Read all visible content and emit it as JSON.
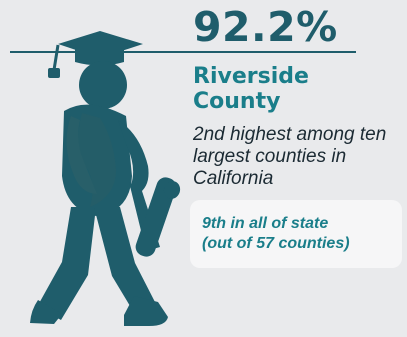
{
  "stat": {
    "value": "92.2%",
    "county": "Riverside County",
    "description": "2nd highest among ten largest counties in California",
    "rank_line_1": "9th in all of state",
    "rank_line_2": "(out of 57 counties)"
  },
  "colors": {
    "primary": "#1f5d6b",
    "accent": "#1a7e8a",
    "background": "#e9eaec",
    "panel": "#f6f6f7"
  },
  "icons": {
    "graduate": "graduate-icon",
    "cap": "graduation-cap-icon",
    "diploma": "diploma-icon"
  }
}
